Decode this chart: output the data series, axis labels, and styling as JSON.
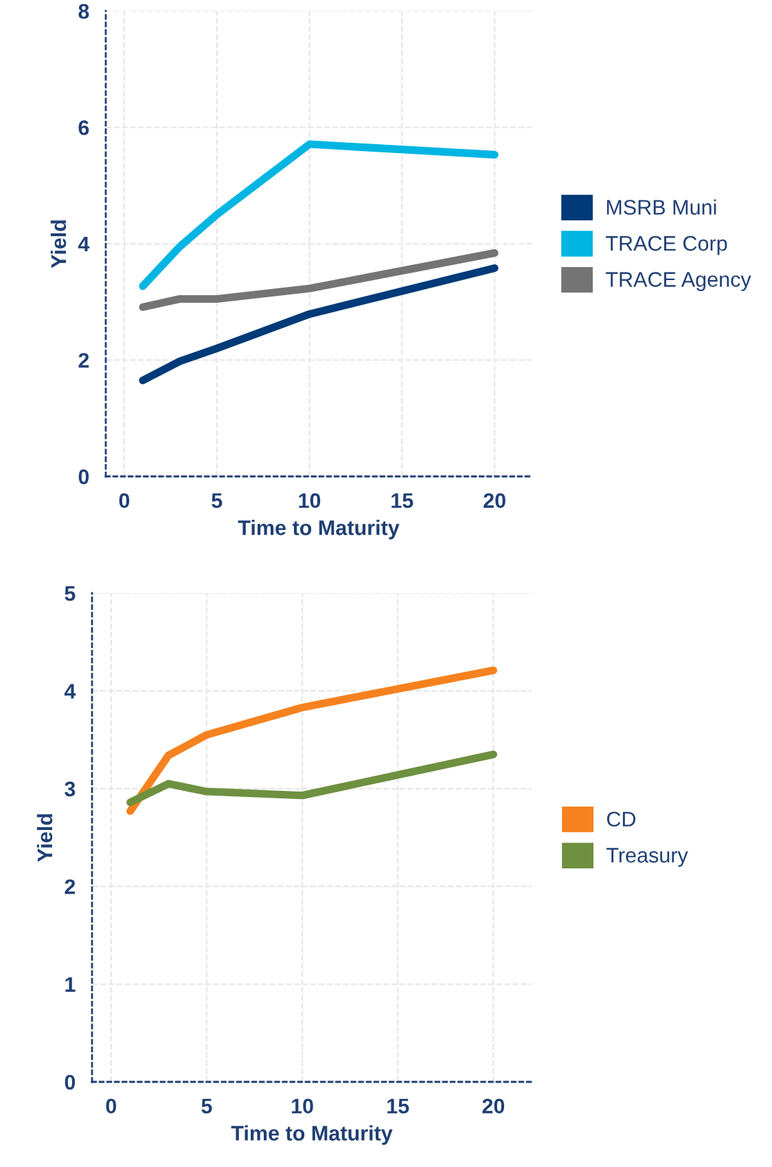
{
  "chart_data": [
    {
      "type": "line",
      "xlabel": "Time to Maturity",
      "ylabel": "Yield",
      "xlim": [
        -1,
        22
      ],
      "ylim": [
        0,
        8
      ],
      "xticks": [
        0,
        5,
        10,
        15,
        20
      ],
      "yticks": [
        0,
        2,
        4,
        6,
        8
      ],
      "grid": true,
      "legend": "right",
      "marker": "none",
      "line_style": "solid",
      "x": [
        1,
        3,
        5,
        10,
        20
      ],
      "series": [
        {
          "name": "MSRB Muni",
          "color": "#003a78",
          "values": [
            1.65,
            1.98,
            2.2,
            2.79,
            3.58
          ]
        },
        {
          "name": "TRACE Corp",
          "color": "#00b5e2",
          "values": [
            3.27,
            3.95,
            4.5,
            5.71,
            5.53
          ]
        },
        {
          "name": "TRACE Agency",
          "color": "#747474",
          "values": [
            2.91,
            3.05,
            3.05,
            3.23,
            3.84
          ]
        }
      ]
    },
    {
      "type": "line",
      "xlabel": "Time to Maturity",
      "ylabel": "Yield",
      "xlim": [
        -1,
        22
      ],
      "ylim": [
        0,
        5
      ],
      "xticks": [
        0,
        5,
        10,
        15,
        20
      ],
      "yticks": [
        0,
        1,
        2,
        3,
        4,
        5
      ],
      "grid": true,
      "legend": "right",
      "marker": "none",
      "line_style": "solid",
      "x": [
        1,
        3,
        5,
        10,
        20
      ],
      "series": [
        {
          "name": "CD",
          "color": "#f5821f",
          "values": [
            2.77,
            3.34,
            3.55,
            3.83,
            4.21
          ]
        },
        {
          "name": "Treasury",
          "color": "#6e9040",
          "values": [
            2.86,
            3.05,
            2.97,
            2.93,
            3.35
          ]
        }
      ]
    }
  ]
}
